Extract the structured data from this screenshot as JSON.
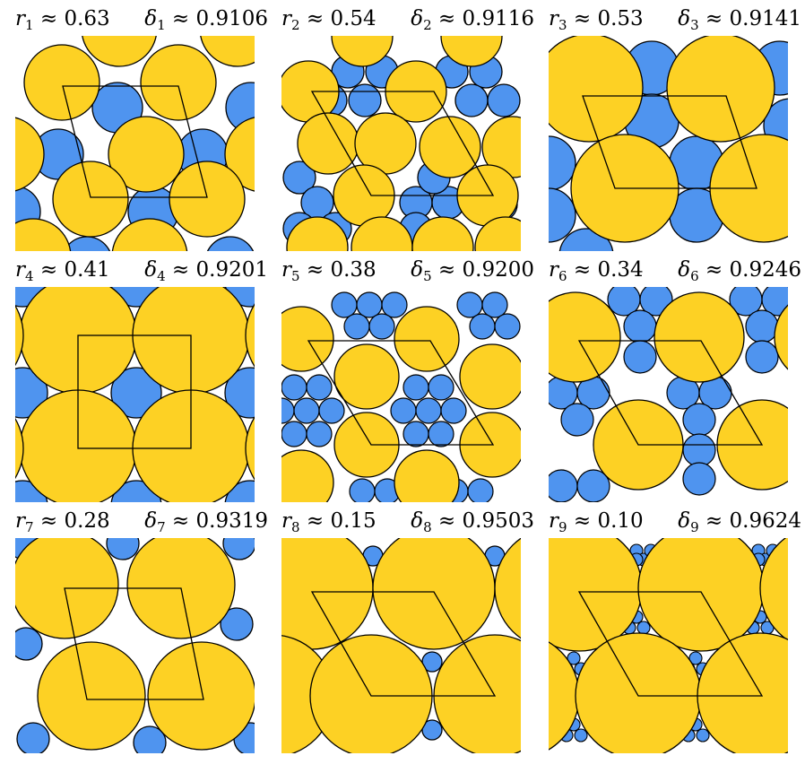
{
  "colors": {
    "large": "#FDD124",
    "small": "#4F94EF",
    "edge": "#000000",
    "gap": "#FFFFFF"
  },
  "panels": [
    {
      "index": "1",
      "r": "0.63",
      "delta": "0.9106"
    },
    {
      "index": "2",
      "r": "0.54",
      "delta": "0.9116"
    },
    {
      "index": "3",
      "r": "0.53",
      "delta": "0.9141"
    },
    {
      "index": "4",
      "r": "0.41",
      "delta": "0.9201"
    },
    {
      "index": "5",
      "r": "0.38",
      "delta": "0.9200"
    },
    {
      "index": "6",
      "r": "0.34",
      "delta": "0.9246"
    },
    {
      "index": "7",
      "r": "0.28",
      "delta": "0.9319"
    },
    {
      "index": "8",
      "r": "0.15",
      "delta": "0.9503"
    },
    {
      "index": "9",
      "r": "0.10",
      "delta": "0.9624"
    }
  ]
}
